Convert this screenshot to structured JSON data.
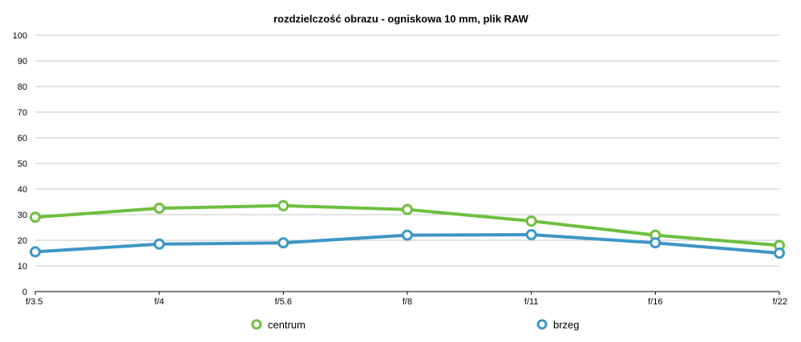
{
  "chart_data": {
    "type": "line",
    "title": "rozdzielczość obrazu - ogniskowa 10 mm, plik RAW",
    "xlabel": "",
    "ylabel": "",
    "categories": [
      "f/3.5",
      "f/4",
      "f/5.6",
      "f/8",
      "f/11",
      "f/16",
      "f/22"
    ],
    "ylim": [
      0,
      100
    ],
    "yticks": [
      0,
      10,
      20,
      30,
      40,
      50,
      60,
      70,
      80,
      90,
      100
    ],
    "grid": true,
    "legend_position": "bottom",
    "series": [
      {
        "name": "centrum",
        "color": "#6dbf3e",
        "values": [
          29,
          32.5,
          33.5,
          32,
          27.5,
          22,
          18
        ]
      },
      {
        "name": "brzeg",
        "color": "#3d96c6",
        "values": [
          15.5,
          18.5,
          19,
          22,
          22.2,
          19,
          15
        ]
      }
    ]
  }
}
